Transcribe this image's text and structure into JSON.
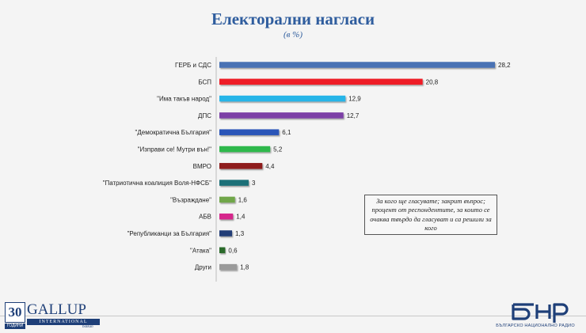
{
  "header": {
    "title": "Електорални нагласи",
    "subtitle": "(в %)"
  },
  "note": "За кого ще гласувате; закрит въпрос; процент от респондентите, за които се очаква твърдо да гласуват и са решили за кого",
  "chart_data": {
    "type": "bar",
    "orientation": "horizontal",
    "title": "Електорални нагласи",
    "subtitle": "(в %)",
    "categories": [
      "ГЕРБ и СДС",
      "БСП",
      "\"Има такъв народ\"",
      "ДПС",
      "\"Демократична България\"",
      "\"Изправи се! Мутри вън!\"",
      "ВМРО",
      "\"Патриотична коалиция Воля-НФСБ\"",
      "\"Възраждане\"",
      "АБВ",
      "\"Републиканци за България\"",
      "\"Атака\"",
      "Други"
    ],
    "values": [
      28.2,
      20.8,
      12.9,
      12.7,
      6.1,
      5.2,
      4.4,
      3,
      1.6,
      1.4,
      1.3,
      0.6,
      1.8
    ],
    "value_labels": [
      "28,2",
      "20,8",
      "12,9",
      "12,7",
      "6,1",
      "5,2",
      "4,4",
      "3",
      "1,6",
      "1,4",
      "1,3",
      "0,6",
      "1,8"
    ],
    "colors": [
      "#4a72b4",
      "#ee1c25",
      "#26b5e8",
      "#7b3fa6",
      "#2a55b8",
      "#2db84b",
      "#8e1c1c",
      "#1f6f78",
      "#6fa64a",
      "#d6278c",
      "#233e77",
      "#2b6b2b",
      "#9a9a9a"
    ],
    "xlim": [
      0,
      30
    ],
    "grid": false,
    "legend": false
  },
  "logos": {
    "gallup": {
      "number": "30",
      "years_label": "ГОДИНИ",
      "name": "GALLUP",
      "subname": "INTERNATIONAL",
      "city": "balkan"
    },
    "bnr": {
      "wordmark": "бнр",
      "subtitle": "БЪЛГАРСКО НАЦИОНАЛНО РАДИО"
    }
  }
}
